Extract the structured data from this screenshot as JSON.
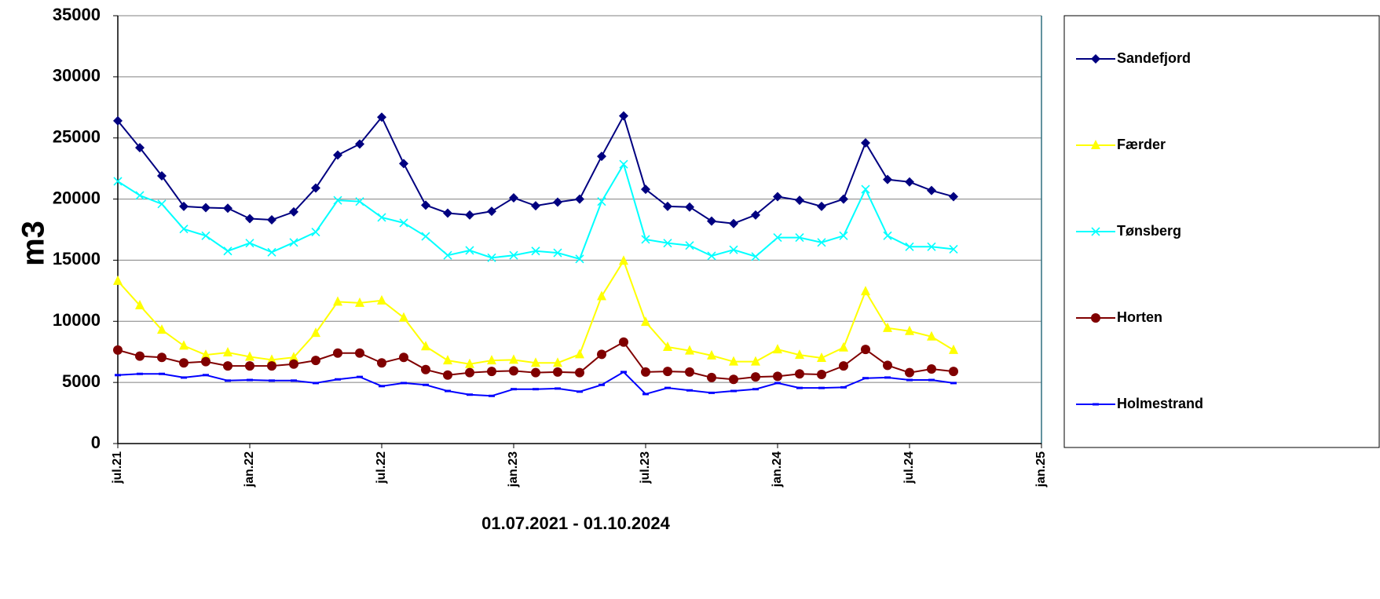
{
  "chart_data": {
    "type": "line",
    "x_label": "01.07.2021 - 01.10.2024",
    "y_label": "m3",
    "x": [
      "2021-07",
      "2021-08",
      "2021-09",
      "2021-10",
      "2021-11",
      "2021-12",
      "2022-01",
      "2022-02",
      "2022-03",
      "2022-04",
      "2022-05",
      "2022-06",
      "2022-07",
      "2022-08",
      "2022-09",
      "2022-10",
      "2022-11",
      "2022-12",
      "2023-01",
      "2023-02",
      "2023-03",
      "2023-04",
      "2023-05",
      "2023-06",
      "2023-07",
      "2023-08",
      "2023-09",
      "2023-10",
      "2023-11",
      "2023-12",
      "2024-01",
      "2024-02",
      "2024-03",
      "2024-04",
      "2024-05",
      "2024-06",
      "2024-07",
      "2024-08",
      "2024-09"
    ],
    "xlim": [
      "2021-07",
      "2025-01"
    ],
    "xticks": [
      {
        "value": "2021-07",
        "label": "jul.21"
      },
      {
        "value": "2022-01",
        "label": "jan.22"
      },
      {
        "value": "2022-07",
        "label": "jul.22"
      },
      {
        "value": "2023-01",
        "label": "jan.23"
      },
      {
        "value": "2023-07",
        "label": "jul.23"
      },
      {
        "value": "2024-01",
        "label": "jan.24"
      },
      {
        "value": "2024-07",
        "label": "jul.24"
      },
      {
        "value": "2025-01",
        "label": "jan.25"
      }
    ],
    "ylim": [
      0,
      35000
    ],
    "yticks": [
      0,
      5000,
      10000,
      15000,
      20000,
      25000,
      30000,
      35000
    ],
    "grid": true,
    "legend": "right",
    "series": [
      {
        "name": "Sandefjord",
        "color": "#000080",
        "marker": "diamond",
        "values": [
          26400,
          24200,
          21900,
          19400,
          19300,
          19250,
          18400,
          18300,
          18950,
          20900,
          23600,
          24500,
          26700,
          22900,
          19500,
          18850,
          18700,
          19000,
          20100,
          19450,
          19750,
          20000,
          23500,
          26800,
          20800,
          19400,
          19350,
          18200,
          18000,
          18700,
          20200,
          19900,
          19400,
          20000,
          24600,
          21600,
          21400,
          20700,
          20200
        ]
      },
      {
        "name": "Færder",
        "color": "#ffff00",
        "marker": "triangle",
        "values": [
          13300,
          11300,
          9300,
          8000,
          7250,
          7450,
          7100,
          6850,
          7050,
          9050,
          11600,
          11500,
          11700,
          10300,
          7950,
          6800,
          6500,
          6800,
          6850,
          6600,
          6600,
          7300,
          12050,
          14950,
          9950,
          7900,
          7600,
          7200,
          6700,
          6700,
          7700,
          7250,
          7000,
          7850,
          12450,
          9450,
          9200,
          8750,
          7650
        ]
      },
      {
        "name": "Tønsberg",
        "color": "#00ffff",
        "marker": "cross",
        "values": [
          21450,
          20300,
          19600,
          17550,
          17000,
          15750,
          16400,
          15650,
          16450,
          17300,
          19900,
          19800,
          18500,
          18050,
          16950,
          15400,
          15800,
          15200,
          15400,
          15750,
          15600,
          15100,
          19800,
          22850,
          16700,
          16400,
          16200,
          15350,
          15850,
          15300,
          16850,
          16850,
          16450,
          17000,
          20800,
          17000,
          16100,
          16100,
          15900
        ]
      },
      {
        "name": "Horten",
        "color": "#800000",
        "marker": "circle",
        "values": [
          7650,
          7150,
          7050,
          6600,
          6700,
          6350,
          6350,
          6350,
          6500,
          6800,
          7400,
          7400,
          6600,
          7050,
          6050,
          5600,
          5800,
          5900,
          5950,
          5800,
          5850,
          5800,
          7300,
          8300,
          5850,
          5900,
          5850,
          5400,
          5250,
          5450,
          5500,
          5700,
          5650,
          6350,
          7700,
          6400,
          5800,
          6100,
          5900
        ]
      },
      {
        "name": "Holmestrand",
        "color": "#0000ff",
        "marker": "dash",
        "values": [
          5600,
          5700,
          5700,
          5400,
          5600,
          5150,
          5200,
          5150,
          5150,
          4950,
          5250,
          5450,
          4700,
          4950,
          4800,
          4300,
          4000,
          3900,
          4450,
          4450,
          4500,
          4250,
          4800,
          5850,
          4050,
          4550,
          4350,
          4150,
          4300,
          4450,
          4950,
          4550,
          4550,
          4600,
          5350,
          5400,
          5200,
          5200,
          4950
        ]
      }
    ]
  }
}
